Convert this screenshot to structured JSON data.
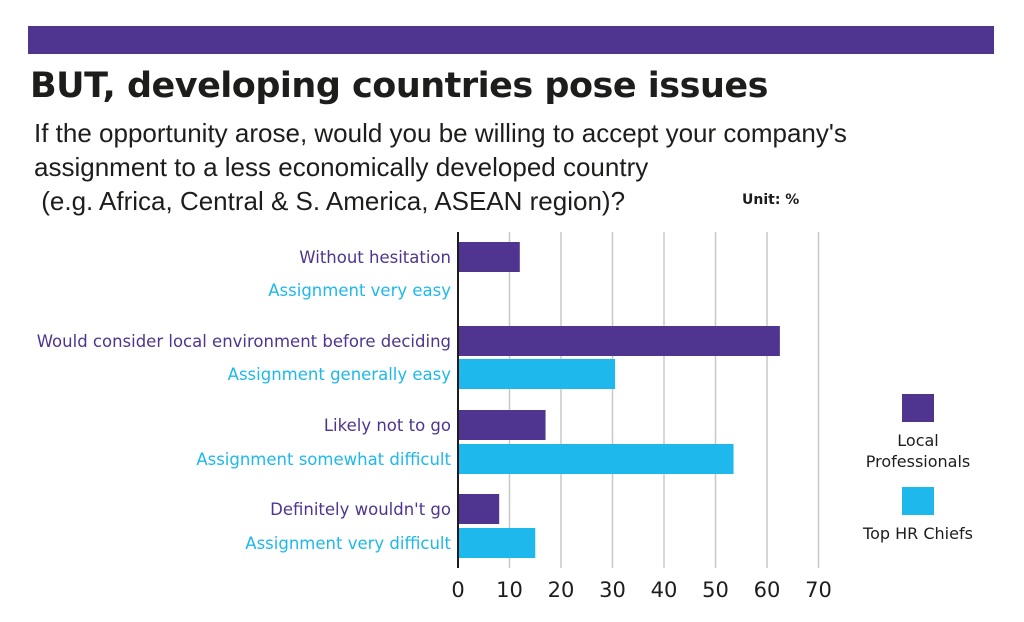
{
  "header": {
    "title": "BUT, developing countries pose issues",
    "subtitle_lines": [
      "If the opportunity arose, would you be willing to accept your company's",
      "assignment to a less economically developed country",
      " (e.g. Africa, Central & S. America, ASEAN region)?"
    ],
    "unit": "Unit: %"
  },
  "colors": {
    "local": "#4f3590",
    "hr": "#1eb8ec",
    "banner": "#4f3590",
    "grid": "#c8c8c8"
  },
  "legend": [
    {
      "label_lines": [
        "Local",
        "Professionals"
      ],
      "color": "#4f3590"
    },
    {
      "label_lines": [
        "Top HR Chiefs"
      ],
      "color": "#1eb8ec"
    }
  ],
  "chart_data": {
    "type": "bar",
    "orientation": "horizontal",
    "title": "BUT, developing countries pose issues",
    "xlim": [
      0,
      70
    ],
    "xticks": [
      0,
      10,
      20,
      30,
      40,
      50,
      60,
      70
    ],
    "grid": true,
    "legend_position": "right",
    "series": [
      {
        "name": "Local Professionals",
        "color": "#4f3590",
        "categories": [
          "Without hesitation",
          "Would consider local environment before deciding",
          "Likely not to go",
          "Definitely wouldn't go"
        ],
        "values": [
          12,
          62.5,
          17,
          8
        ]
      },
      {
        "name": "Top HR Chiefs",
        "color": "#1eb8ec",
        "categories": [
          "Assignment very easy",
          "Assignment generally easy",
          "Assignment somewhat difficult",
          "Assignment very difficult"
        ],
        "values": [
          0,
          30.5,
          53.5,
          15
        ]
      }
    ]
  }
}
